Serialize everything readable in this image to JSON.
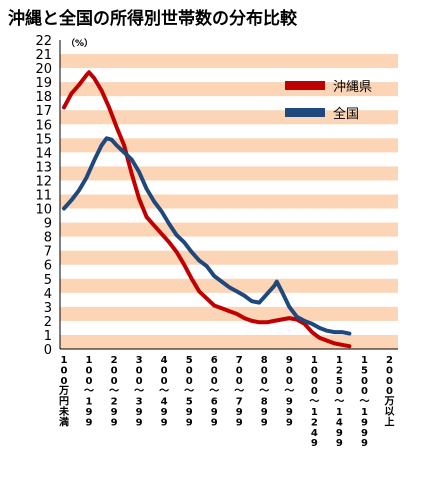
{
  "chart_data": {
    "type": "line",
    "title": "沖縄と全国の所得別世帯数の分布比較",
    "unit_label": "（%）",
    "ylim": [
      0,
      22
    ],
    "y_ticks": [
      "0",
      "1",
      "2",
      "3",
      "4",
      "5",
      "6",
      "7",
      "8",
      "9",
      "10",
      "11",
      "12",
      "13",
      "14",
      "15",
      "16",
      "17",
      "18",
      "19",
      "20",
      "21",
      "22"
    ],
    "grid": "alternating horizontal bands",
    "legend_position": "top-right",
    "categories": [
      "100万円未満",
      "100～199",
      "200～299",
      "300～399",
      "400～499",
      "500～599",
      "600～699",
      "700～799",
      "800～899",
      "900～999",
      "1000～1249",
      "1250～1499",
      "1500～1999",
      "2000万以上"
    ],
    "series": [
      {
        "name": "沖縄県",
        "color": "#c00000",
        "points": [
          [
            0,
            17.2
          ],
          [
            0.3,
            18.2
          ],
          [
            0.6,
            18.8
          ],
          [
            0.9,
            19.5
          ],
          [
            1.0,
            19.7
          ],
          [
            1.2,
            19.3
          ],
          [
            1.5,
            18.4
          ],
          [
            1.8,
            17.2
          ],
          [
            2.1,
            15.8
          ],
          [
            2.4,
            14.5
          ],
          [
            2.7,
            12.5
          ],
          [
            3.0,
            10.7
          ],
          [
            3.3,
            9.4
          ],
          [
            3.6,
            8.8
          ],
          [
            3.9,
            8.2
          ],
          [
            4.2,
            7.6
          ],
          [
            4.5,
            6.9
          ],
          [
            4.8,
            6.0
          ],
          [
            5.1,
            5.0
          ],
          [
            5.4,
            4.1
          ],
          [
            5.7,
            3.6
          ],
          [
            6.0,
            3.1
          ],
          [
            6.3,
            2.9
          ],
          [
            6.6,
            2.7
          ],
          [
            6.9,
            2.5
          ],
          [
            7.2,
            2.2
          ],
          [
            7.5,
            2.0
          ],
          [
            7.8,
            1.9
          ],
          [
            8.1,
            1.9
          ],
          [
            8.4,
            2.0
          ],
          [
            8.7,
            2.1
          ],
          [
            9.0,
            2.2
          ],
          [
            9.3,
            2.1
          ],
          [
            9.6,
            1.8
          ],
          [
            9.9,
            1.2
          ],
          [
            10.2,
            0.8
          ],
          [
            10.5,
            0.6
          ],
          [
            10.8,
            0.4
          ],
          [
            11.1,
            0.3
          ],
          [
            11.4,
            0.2
          ]
        ]
      },
      {
        "name": "全国",
        "color": "#1f497d",
        "points": [
          [
            0,
            10.0
          ],
          [
            0.3,
            10.6
          ],
          [
            0.6,
            11.3
          ],
          [
            0.9,
            12.2
          ],
          [
            1.2,
            13.4
          ],
          [
            1.5,
            14.5
          ],
          [
            1.7,
            15.0
          ],
          [
            1.9,
            14.9
          ],
          [
            2.1,
            14.5
          ],
          [
            2.4,
            14.0
          ],
          [
            2.7,
            13.5
          ],
          [
            3.0,
            12.6
          ],
          [
            3.3,
            11.4
          ],
          [
            3.6,
            10.5
          ],
          [
            3.9,
            9.8
          ],
          [
            4.2,
            8.9
          ],
          [
            4.5,
            8.1
          ],
          [
            4.8,
            7.6
          ],
          [
            5.1,
            6.9
          ],
          [
            5.4,
            6.3
          ],
          [
            5.7,
            5.9
          ],
          [
            6.0,
            5.2
          ],
          [
            6.3,
            4.8
          ],
          [
            6.6,
            4.4
          ],
          [
            6.9,
            4.1
          ],
          [
            7.2,
            3.8
          ],
          [
            7.5,
            3.4
          ],
          [
            7.8,
            3.3
          ],
          [
            8.1,
            3.9
          ],
          [
            8.4,
            4.5
          ],
          [
            8.5,
            4.8
          ],
          [
            8.7,
            4.1
          ],
          [
            9.0,
            3.0
          ],
          [
            9.3,
            2.3
          ],
          [
            9.6,
            2.0
          ],
          [
            9.9,
            1.8
          ],
          [
            10.2,
            1.5
          ],
          [
            10.5,
            1.3
          ],
          [
            10.8,
            1.2
          ],
          [
            11.1,
            1.2
          ],
          [
            11.4,
            1.1
          ]
        ]
      }
    ]
  }
}
